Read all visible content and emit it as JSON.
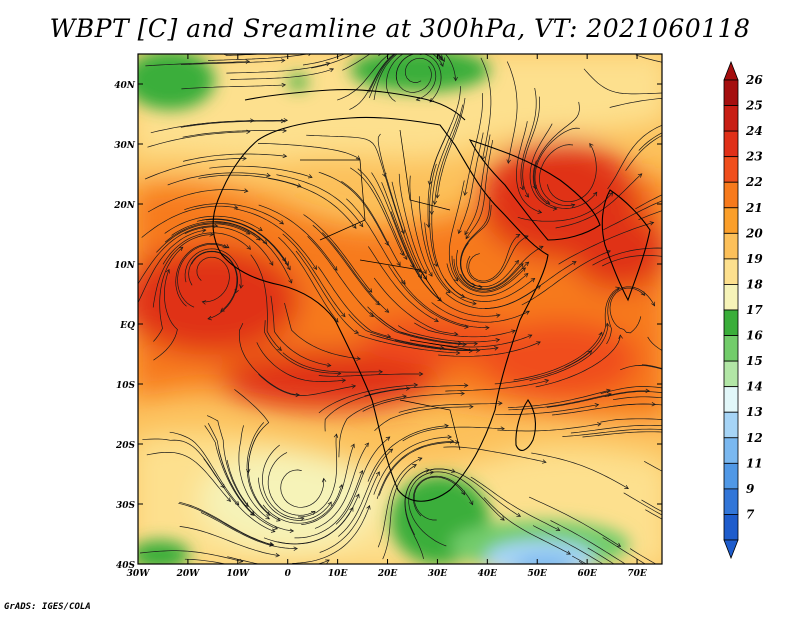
{
  "title": "WBPT [C] and Sreamline at 300hPa, VT: 2021060118",
  "credit": "GrADS: IGES/COLA",
  "map": {
    "lon_range": [
      -30,
      75
    ],
    "lat_range": [
      -40,
      45
    ],
    "lat_ticks": [
      {
        "value": 40,
        "label": "40N"
      },
      {
        "value": 30,
        "label": "30N"
      },
      {
        "value": 20,
        "label": "20N"
      },
      {
        "value": 10,
        "label": "10N"
      },
      {
        "value": 0,
        "label": "EQ"
      },
      {
        "value": -10,
        "label": "10S"
      },
      {
        "value": -20,
        "label": "20S"
      },
      {
        "value": -30,
        "label": "30S"
      },
      {
        "value": -40,
        "label": "40S"
      }
    ],
    "lon_ticks": [
      {
        "value": -30,
        "label": "30W"
      },
      {
        "value": -20,
        "label": "20W"
      },
      {
        "value": -10,
        "label": "10W"
      },
      {
        "value": 0,
        "label": "0"
      },
      {
        "value": 10,
        "label": "10E"
      },
      {
        "value": 20,
        "label": "20E"
      },
      {
        "value": 30,
        "label": "30E"
      },
      {
        "value": 40,
        "label": "40E"
      },
      {
        "value": 50,
        "label": "50E"
      },
      {
        "value": 60,
        "label": "60E"
      },
      {
        "value": 70,
        "label": "70E"
      }
    ]
  },
  "colorbar": {
    "levels": [
      {
        "label": "26",
        "color": "#a50f0f"
      },
      {
        "label": "25",
        "color": "#c81e14"
      },
      {
        "label": "24",
        "color": "#e03018"
      },
      {
        "label": "23",
        "color": "#f04e1c"
      },
      {
        "label": "22",
        "color": "#f77a1c"
      },
      {
        "label": "21",
        "color": "#fb9f2a"
      },
      {
        "label": "20",
        "color": "#fcc05a"
      },
      {
        "label": "19",
        "color": "#fde08e"
      },
      {
        "label": "18",
        "color": "#f6f3b8"
      },
      {
        "label": "17",
        "color": "#3aae3a"
      },
      {
        "label": "16",
        "color": "#72cc6a"
      },
      {
        "label": "15",
        "color": "#b2e6a6"
      },
      {
        "label": "14",
        "color": "#e2f7f9"
      },
      {
        "label": "13",
        "color": "#a6d4f6"
      },
      {
        "label": "12",
        "color": "#7ab8f0"
      },
      {
        "label": "11",
        "color": "#5098e6"
      },
      {
        "label": "9",
        "color": "#3276d8"
      },
      {
        "label": "7",
        "color": "#1e5ccc"
      }
    ]
  },
  "fields": {
    "warm_core_color": "#e03018",
    "hot_core_color": "#c81e14",
    "cool_color": "#fde08e",
    "green_color": "#72cc6a",
    "blue_color": "#a6d4f6"
  }
}
